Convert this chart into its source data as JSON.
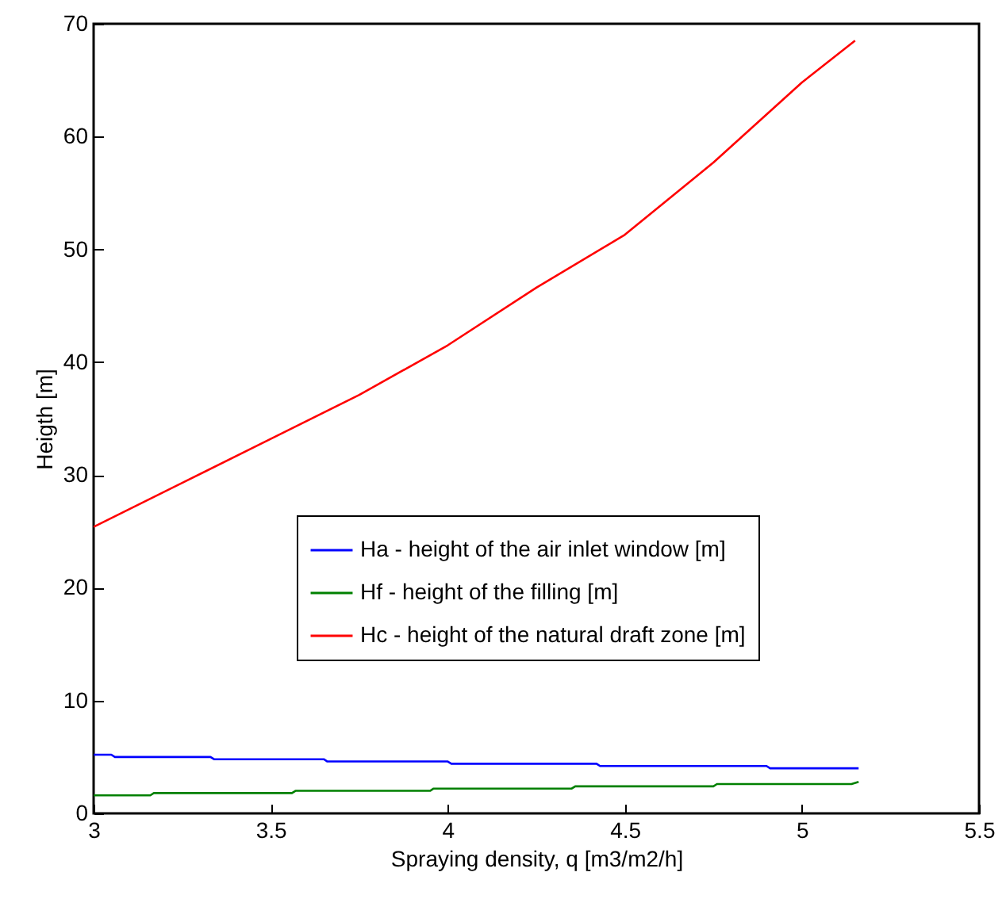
{
  "chart_data": {
    "type": "line",
    "xlabel": "Spraying density, q [m3/m2/h]",
    "ylabel": "Heigth [m]",
    "xlim": [
      3,
      5.5
    ],
    "ylim": [
      0,
      70
    ],
    "xticks": [
      3,
      3.5,
      4,
      4.5,
      5,
      5.5
    ],
    "yticks": [
      0,
      10,
      20,
      30,
      40,
      50,
      60,
      70
    ],
    "grid": false,
    "legend": "bottom right",
    "series": [
      {
        "name": "Ha - height of the air inlet window [m]",
        "color": "#0000ff",
        "x": [
          3,
          3.05,
          3.06,
          3.33,
          3.34,
          3.65,
          3.66,
          4.0,
          4.01,
          4.42,
          4.43,
          4.9,
          4.91,
          5.16
        ],
        "values": [
          5.2,
          5.2,
          5.0,
          5.0,
          4.8,
          4.8,
          4.6,
          4.6,
          4.4,
          4.4,
          4.2,
          4.2,
          4.0,
          4.0
        ]
      },
      {
        "name": "Hf - height of the filling  [m]",
        "color": "#008000",
        "x": [
          3,
          3.16,
          3.17,
          3.56,
          3.57,
          3.95,
          3.96,
          4.35,
          4.36,
          4.75,
          4.76,
          5.14,
          5.16
        ],
        "values": [
          1.6,
          1.6,
          1.8,
          1.8,
          2.0,
          2.0,
          2.2,
          2.2,
          2.4,
          2.4,
          2.6,
          2.6,
          2.8
        ]
      },
      {
        "name": "Hc - height of the natural draft zone [m]",
        "color": "#ff0000",
        "x": [
          3,
          3.25,
          3.5,
          3.75,
          4,
          4.25,
          4.5,
          4.75,
          5,
          5.15
        ],
        "values": [
          25.4,
          29.3,
          33.2,
          37.1,
          41.5,
          46.6,
          51.3,
          57.7,
          64.8,
          68.5
        ]
      }
    ]
  }
}
